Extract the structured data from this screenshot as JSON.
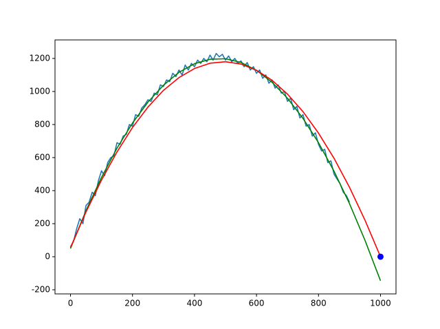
{
  "chart_data": {
    "type": "line",
    "xlim": [
      -50,
      1050
    ],
    "ylim": [
      -225,
      1312
    ],
    "xticks": [
      0,
      200,
      400,
      600,
      800,
      1000
    ],
    "yticks": [
      -200,
      0,
      200,
      400,
      600,
      800,
      1000,
      1200
    ],
    "grid": false,
    "series": [
      {
        "color": "#1f77b4",
        "style": "line",
        "x": [
          0,
          10,
          20,
          30,
          40,
          50,
          60,
          70,
          80,
          90,
          100,
          110,
          120,
          130,
          140,
          150,
          160,
          170,
          180,
          190,
          200,
          210,
          220,
          230,
          240,
          250,
          260,
          270,
          280,
          290,
          300,
          310,
          320,
          330,
          340,
          350,
          360,
          370,
          380,
          390,
          400,
          410,
          420,
          430,
          440,
          450,
          460,
          470,
          480,
          490,
          500,
          510,
          520,
          530,
          540,
          550,
          560,
          570,
          580,
          590,
          600,
          610,
          620,
          630,
          640,
          650,
          660,
          670,
          680,
          690,
          700,
          710,
          720,
          730,
          740,
          750,
          760,
          770,
          780,
          790,
          800,
          810,
          820,
          830,
          840,
          850,
          860,
          870,
          880,
          890,
          900
        ],
        "values": [
          60,
          95,
          170,
          230,
          200,
          310,
          330,
          390,
          370,
          460,
          520,
          490,
          570,
          600,
          610,
          690,
          680,
          730,
          740,
          800,
          790,
          860,
          850,
          900,
          920,
          950,
          940,
          990,
          980,
          1040,
          1030,
          1070,
          1060,
          1110,
          1090,
          1130,
          1100,
          1160,
          1130,
          1170,
          1150,
          1190,
          1170,
          1200,
          1180,
          1220,
          1190,
          1230,
          1210,
          1225,
          1190,
          1215,
          1180,
          1200,
          1170,
          1185,
          1150,
          1175,
          1130,
          1150,
          1110,
          1130,
          1080,
          1100,
          1050,
          1070,
          1020,
          1040,
          990,
          1000,
          940,
          960,
          890,
          910,
          840,
          860,
          790,
          800,
          730,
          750,
          680,
          640,
          650,
          570,
          580,
          500,
          470,
          440,
          390,
          370,
          330
        ]
      },
      {
        "color": "#008000",
        "style": "line",
        "x": [
          0,
          50,
          100,
          150,
          200,
          250,
          300,
          350,
          400,
          450,
          500,
          550,
          600,
          650,
          700,
          750,
          800,
          850,
          900,
          950,
          1000
        ],
        "values": [
          50,
          279,
          480,
          657,
          809,
          936,
          1038,
          1116,
          1168,
          1195,
          1198,
          1176,
          1128,
          1056,
          959,
          837,
          690,
          518,
          321,
          99,
          -145
        ]
      },
      {
        "color": "#ff0000",
        "style": "line",
        "x": [
          0,
          50,
          100,
          150,
          200,
          250,
          300,
          350,
          400,
          450,
          500,
          550,
          600,
          650,
          700,
          750,
          800,
          850,
          900,
          950,
          1000
        ],
        "values": [
          55,
          271,
          464,
          634,
          782,
          906,
          1007,
          1084,
          1139,
          1171,
          1180,
          1166,
          1128,
          1068,
          984,
          878,
          748,
          596,
          420,
          221,
          0
        ]
      },
      {
        "color": "#0000ff",
        "style": "point",
        "x": [
          1000
        ],
        "values": [
          0
        ]
      }
    ]
  }
}
